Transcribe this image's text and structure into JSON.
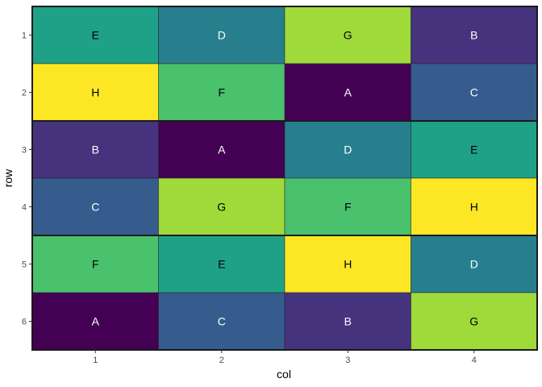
{
  "chart_data": {
    "type": "heatmap",
    "xlabel": "col",
    "ylabel": "row",
    "x_ticks": [
      "1",
      "2",
      "3",
      "4"
    ],
    "y_ticks": [
      "1",
      "2",
      "3",
      "4",
      "5",
      "6"
    ],
    "blocks": [
      {
        "rows": [
          1,
          2
        ]
      },
      {
        "rows": [
          3,
          4
        ]
      },
      {
        "rows": [
          5,
          6
        ]
      }
    ],
    "grid": false,
    "legend": "none",
    "palette": {
      "A": "#440154",
      "B": "#46337E",
      "C": "#365C8D",
      "D": "#277F8E",
      "E": "#1FA187",
      "F": "#4AC16D",
      "G": "#9FDA3A",
      "H": "#FDE725"
    },
    "label_colors": {
      "dark": "#ffffff",
      "light": "#000000"
    },
    "light_fill_labels": [
      "E",
      "F",
      "G",
      "H"
    ],
    "cells": [
      {
        "row": 1,
        "col": 1,
        "label": "E"
      },
      {
        "row": 1,
        "col": 2,
        "label": "D"
      },
      {
        "row": 1,
        "col": 3,
        "label": "G"
      },
      {
        "row": 1,
        "col": 4,
        "label": "B"
      },
      {
        "row": 2,
        "col": 1,
        "label": "H"
      },
      {
        "row": 2,
        "col": 2,
        "label": "F"
      },
      {
        "row": 2,
        "col": 3,
        "label": "A"
      },
      {
        "row": 2,
        "col": 4,
        "label": "C"
      },
      {
        "row": 3,
        "col": 1,
        "label": "B"
      },
      {
        "row": 3,
        "col": 2,
        "label": "A"
      },
      {
        "row": 3,
        "col": 3,
        "label": "D"
      },
      {
        "row": 3,
        "col": 4,
        "label": "E"
      },
      {
        "row": 4,
        "col": 1,
        "label": "C"
      },
      {
        "row": 4,
        "col": 2,
        "label": "G"
      },
      {
        "row": 4,
        "col": 3,
        "label": "F"
      },
      {
        "row": 4,
        "col": 4,
        "label": "H"
      },
      {
        "row": 5,
        "col": 1,
        "label": "F"
      },
      {
        "row": 5,
        "col": 2,
        "label": "E"
      },
      {
        "row": 5,
        "col": 3,
        "label": "H"
      },
      {
        "row": 5,
        "col": 4,
        "label": "D"
      },
      {
        "row": 6,
        "col": 1,
        "label": "A"
      },
      {
        "row": 6,
        "col": 2,
        "label": "C"
      },
      {
        "row": 6,
        "col": 3,
        "label": "B"
      },
      {
        "row": 6,
        "col": 4,
        "label": "G"
      }
    ]
  }
}
